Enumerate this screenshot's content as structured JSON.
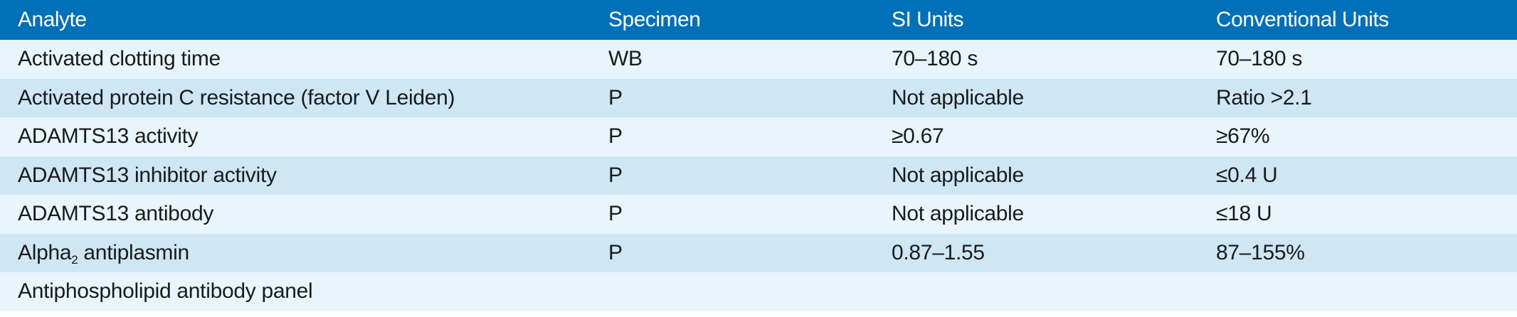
{
  "table": {
    "headers": [
      "Analyte",
      "Specimen",
      "SI Units",
      "Conventional Units"
    ],
    "rows": [
      {
        "analyte": "Activated clotting time",
        "specimen": "WB",
        "si": "70–180 s",
        "conventional": "70–180 s"
      },
      {
        "analyte": "Activated protein C resistance (factor V Leiden)",
        "specimen": "P",
        "si": "Not applicable",
        "conventional": "Ratio >2.1"
      },
      {
        "analyte": "ADAMTS13 activity",
        "specimen": "P",
        "si": "≥0.67",
        "conventional": "≥67%"
      },
      {
        "analyte": "ADAMTS13 inhibitor activity",
        "specimen": "P",
        "si": "Not applicable",
        "conventional": "≤0.4 U"
      },
      {
        "analyte": "ADAMTS13 antibody",
        "specimen": "P",
        "si": "Not applicable",
        "conventional": "≤18 U"
      },
      {
        "analyte_base": "Alpha",
        "analyte_sub": "2",
        "analyte_rest": " antiplasmin",
        "specimen": "P",
        "si": "0.87–1.55",
        "conventional": "87–155%"
      },
      {
        "analyte": "Antiphospholipid antibody panel",
        "specimen": "",
        "si": "",
        "conventional": ""
      }
    ]
  }
}
